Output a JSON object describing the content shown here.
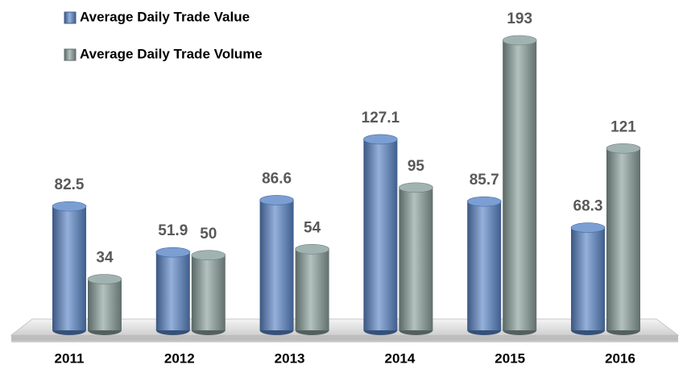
{
  "chart_data": {
    "type": "bar",
    "categories": [
      "2011",
      "2012",
      "2013",
      "2014",
      "2015",
      "2016"
    ],
    "series": [
      {
        "name": "Average Daily Trade Value",
        "color": "#5a86c8",
        "values": [
          82.5,
          51.9,
          86.6,
          127.1,
          85.7,
          68.3
        ]
      },
      {
        "name": "Average Daily Trade Volume",
        "color": "#8aa09c",
        "values": [
          34,
          50,
          54,
          95,
          193,
          121
        ]
      }
    ],
    "legend": "top-left"
  }
}
